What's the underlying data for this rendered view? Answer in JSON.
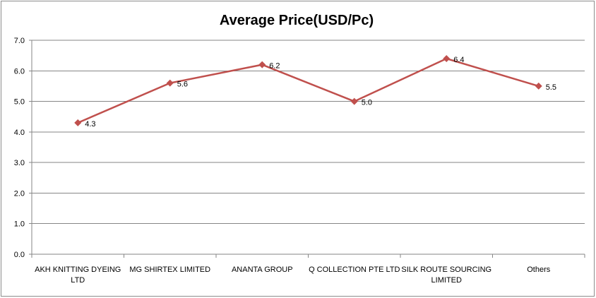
{
  "chart_data": {
    "type": "line",
    "title": "Average Price(USD/Pc)",
    "xlabel": "",
    "ylabel": "",
    "categories": [
      [
        "AKH KNITTING  DYEING",
        "LTD"
      ],
      [
        "MG SHIRTEX  LIMITED"
      ],
      [
        "ANANTA GROUP"
      ],
      [
        "Q COLLECTION  PTE  LTD"
      ],
      [
        "SILK ROUTE  SOURCING",
        "LIMITED"
      ],
      [
        "Others"
      ]
    ],
    "series": [
      {
        "values": [
          4.3,
          5.6,
          6.2,
          5.0,
          6.4,
          5.5
        ],
        "data_labels": [
          "4.3",
          "5.6",
          "6.2",
          "5.0",
          "6.4",
          "5.5"
        ],
        "color": "#c0504d",
        "marker": "diamond"
      }
    ],
    "ylim": [
      0,
      7
    ],
    "yticks": [
      "0.0",
      "1.0",
      "2.0",
      "3.0",
      "4.0",
      "5.0",
      "6.0",
      "7.0"
    ],
    "grid": true,
    "gridline_color": "#868686",
    "legend": "none"
  }
}
